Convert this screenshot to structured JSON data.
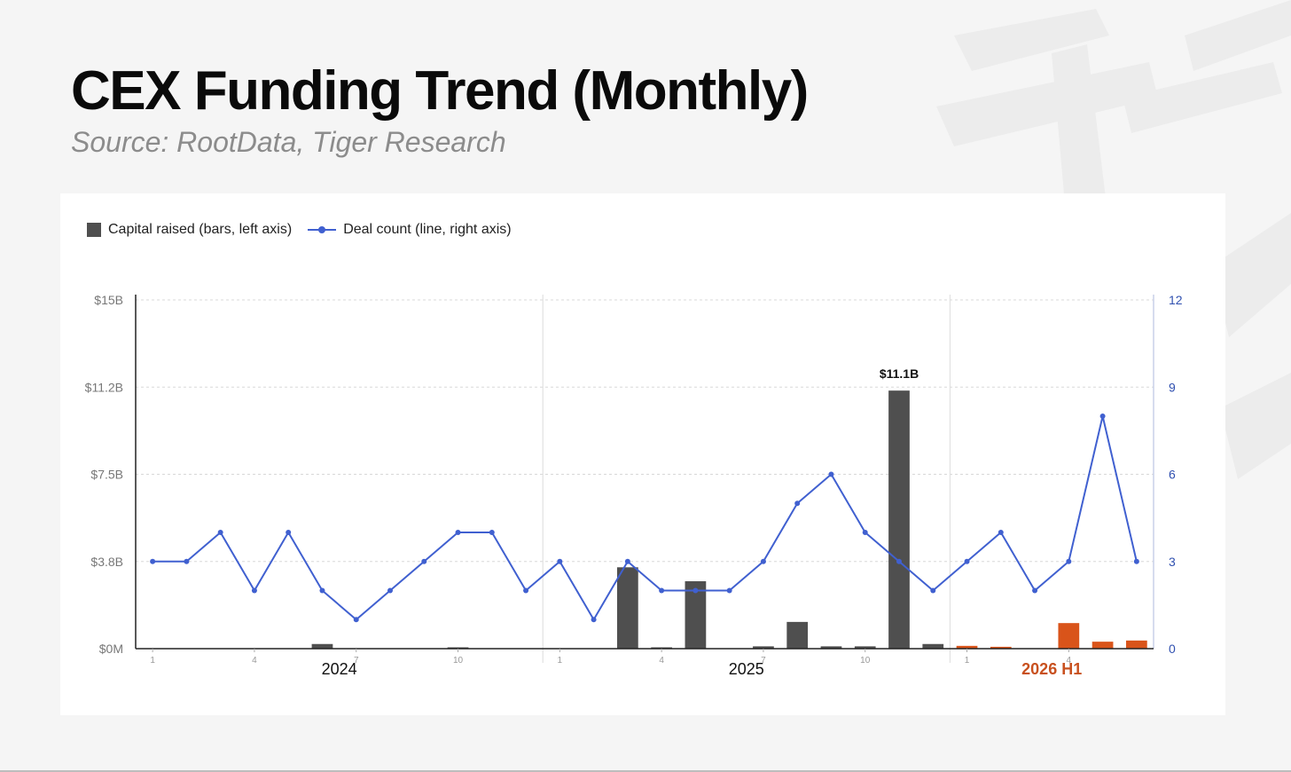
{
  "header": {
    "title": "CEX Funding Trend (Monthly)",
    "subtitle": "Source: RootData, Tiger Research"
  },
  "legend": {
    "bars_label": "Capital raised (bars, left axis)",
    "line_label": "Deal count (line, right axis)"
  },
  "colors": {
    "bar": "#4f4f4f",
    "bar_highlight": "#d9541a",
    "line": "#4060d0",
    "year_2026": "#c8501e"
  },
  "chart_data": {
    "type": "bar",
    "x": [
      "2024-01",
      "2024-02",
      "2024-03",
      "2024-04",
      "2024-05",
      "2024-06",
      "2024-07",
      "2024-08",
      "2024-09",
      "2024-10",
      "2024-11",
      "2024-12",
      "2025-01",
      "2025-02",
      "2025-03",
      "2025-04",
      "2025-05",
      "2025-06",
      "2025-07",
      "2025-08",
      "2025-09",
      "2025-10",
      "2025-11",
      "2025-12",
      "2026-01",
      "2026-02",
      "2026-03",
      "2026-04",
      "2026-05",
      "2026-06"
    ],
    "series": [
      {
        "name": "Capital raised (bars, left axis)",
        "axis": "left",
        "type": "bar",
        "values": [
          0,
          0,
          0,
          0,
          0,
          0.2,
          0,
          0,
          0,
          0.05,
          0,
          0,
          0,
          0,
          3.5,
          0.05,
          2.9,
          0,
          0.1,
          1.15,
          0.1,
          0.1,
          11.1,
          0.2,
          0.12,
          0.08,
          0,
          1.1,
          0.3,
          0.35
        ],
        "highlight_from_index": 24
      },
      {
        "name": "Deal count (line, right axis)",
        "axis": "right",
        "type": "line",
        "values": [
          3,
          3,
          4,
          2,
          4,
          2,
          1,
          2,
          3,
          4,
          4,
          2,
          3,
          1,
          3,
          2,
          2,
          2,
          3,
          5,
          6,
          4,
          3,
          2,
          3,
          4,
          2,
          3,
          8,
          3
        ]
      }
    ],
    "left_axis": {
      "ylim": [
        0,
        15
      ],
      "ticks": [
        0,
        3.75,
        7.5,
        11.25,
        15
      ],
      "tick_labels": [
        "$0M",
        "$3.8B",
        "$7.5B",
        "$11.2B",
        "$15B"
      ]
    },
    "right_axis": {
      "ylim": [
        0,
        12
      ],
      "ticks": [
        0,
        3,
        6,
        9,
        12
      ],
      "tick_labels": [
        "0",
        "3",
        "6",
        "9",
        "12"
      ]
    },
    "month_ticks": [
      {
        "index": 0,
        "label": "1"
      },
      {
        "index": 3,
        "label": "4"
      },
      {
        "index": 6,
        "label": "7"
      },
      {
        "index": 9,
        "label": "10"
      },
      {
        "index": 12,
        "label": "1"
      },
      {
        "index": 15,
        "label": "4"
      },
      {
        "index": 18,
        "label": "7"
      },
      {
        "index": 21,
        "label": "10"
      },
      {
        "index": 24,
        "label": "1"
      },
      {
        "index": 27,
        "label": "4"
      }
    ],
    "year_groups": [
      {
        "label": "2024",
        "start": 0,
        "end": 11,
        "highlight": false
      },
      {
        "label": "2025",
        "start": 12,
        "end": 23,
        "highlight": false
      },
      {
        "label": "2026 H1",
        "start": 24,
        "end": 29,
        "highlight": true
      }
    ],
    "annotations": [
      {
        "index": 22,
        "text": "$11.1B"
      }
    ],
    "grid": true,
    "legend_position": "top-left"
  }
}
